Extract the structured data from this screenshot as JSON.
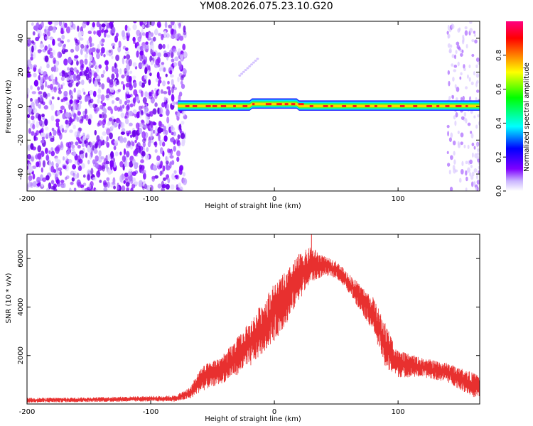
{
  "title": "YM08.2026.075.23.10.G20",
  "chart_data": [
    {
      "type": "heatmap",
      "xlabel": "Height of straight line (km)",
      "ylabel": "Frequency (Hz)",
      "xlim": [
        -200,
        166
      ],
      "ylim": [
        -50,
        50
      ],
      "x_ticks": [
        -200,
        -100,
        0,
        100
      ],
      "y_ticks": [
        -40,
        -20,
        0,
        20,
        40
      ],
      "colorbar": {
        "label": "Normalized spectral amplitude",
        "range": [
          0,
          1
        ],
        "ticks": [
          "0.0",
          "0.2",
          "0.4",
          "0.6",
          "0.8"
        ],
        "colors": [
          "#ffffff",
          "#c9b3ff",
          "#7f00ff",
          "#0000ff",
          "#00ffff",
          "#00ff00",
          "#ffff00",
          "#ff8000",
          "#ff0000",
          "#ff0080"
        ]
      },
      "regions": [
        {
          "name": "noise",
          "x_range": [
            -200,
            -72
          ],
          "freq_range": [
            -50,
            50
          ]
        },
        {
          "name": "signal-band",
          "x_range": [
            -78,
            166
          ],
          "freq_range": [
            -2,
            2
          ]
        },
        {
          "name": "late-noise",
          "x_range": [
            140,
            166
          ],
          "freq_range": [
            -50,
            50
          ]
        }
      ]
    },
    {
      "type": "line",
      "xlabel": "Height of straight line (km)",
      "ylabel": "SNR (10 * v/v)",
      "xlim": [
        -200,
        166
      ],
      "ylim": [
        0,
        7000
      ],
      "x_ticks": [
        -200,
        -100,
        0,
        100
      ],
      "y_ticks": [
        2000,
        4000,
        6000
      ],
      "series": [
        {
          "color": "#e8302f",
          "envelope": {
            "x": [
              -200,
              -150,
              -100,
              -80,
              -68,
              -60,
              -40,
              -20,
              0,
              10,
              20,
              30,
              40,
              50,
              60,
              80,
              90,
              100,
              120,
              140,
              160,
              166
            ],
            "low": [
              50,
              80,
              100,
              100,
              200,
              500,
              900,
              1500,
              2600,
              3300,
              4300,
              5000,
              5300,
              5200,
              4600,
              3000,
              1400,
              1100,
              1100,
              900,
              300,
              200
            ],
            "high": [
              250,
              280,
              330,
              350,
              700,
              1500,
              2100,
              3400,
              5000,
              5500,
              6200,
              6500,
              6100,
              5900,
              5400,
              4400,
              3300,
              2200,
              1900,
              1700,
              1300,
              1200
            ]
          },
          "peak": {
            "x": 30,
            "y": 7000
          }
        }
      ]
    }
  ]
}
